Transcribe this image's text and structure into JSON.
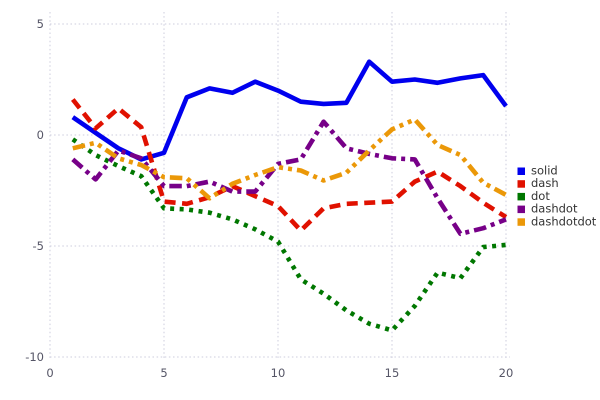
{
  "chart_data": {
    "type": "line",
    "title": "",
    "xlabel": "",
    "ylabel": "",
    "x": [
      1,
      2,
      3,
      4,
      5,
      6,
      7,
      8,
      9,
      10,
      11,
      12,
      13,
      14,
      15,
      16,
      17,
      18,
      19,
      20
    ],
    "series": [
      {
        "name": "solid",
        "style": "solid",
        "color": "#0000EE",
        "values": [
          0.8,
          0.1,
          -0.6,
          -1.1,
          -0.8,
          1.7,
          2.1,
          1.9,
          2.4,
          2.0,
          1.5,
          1.4,
          1.45,
          3.3,
          2.4,
          2.5,
          2.35,
          2.55,
          2.7,
          1.3
        ]
      },
      {
        "name": "dash",
        "style": "dash",
        "color": "#E01100",
        "values": [
          1.6,
          0.3,
          1.2,
          0.35,
          -3.0,
          -3.1,
          -2.8,
          -2.3,
          -2.75,
          -3.2,
          -4.3,
          -3.3,
          -3.1,
          -3.05,
          -3.0,
          -2.1,
          -1.65,
          -2.3,
          -3.05,
          -3.7
        ]
      },
      {
        "name": "dot",
        "style": "dot",
        "color": "#007700",
        "values": [
          -0.2,
          -0.9,
          -1.4,
          -1.85,
          -3.3,
          -3.35,
          -3.5,
          -3.8,
          -4.25,
          -4.8,
          -6.5,
          -7.15,
          -7.9,
          -8.5,
          -8.8,
          -7.7,
          -6.2,
          -6.45,
          -5.05,
          -4.95
        ]
      },
      {
        "name": "dashdot",
        "style": "dashdot",
        "color": "#770088",
        "values": [
          -1.1,
          -2.0,
          -0.7,
          -1.05,
          -2.3,
          -2.3,
          -2.1,
          -2.55,
          -2.55,
          -1.3,
          -1.1,
          0.6,
          -0.6,
          -0.85,
          -1.05,
          -1.1,
          -2.85,
          -4.45,
          -4.2,
          -3.8
        ]
      },
      {
        "name": "dashdotdot",
        "style": "dashdotdot",
        "color": "#EB9808",
        "values": [
          -0.6,
          -0.35,
          -1.05,
          -1.35,
          -1.9,
          -1.95,
          -2.85,
          -2.2,
          -1.8,
          -1.45,
          -1.6,
          -2.05,
          -1.7,
          -0.7,
          0.25,
          0.7,
          -0.45,
          -0.9,
          -2.15,
          -2.7
        ]
      }
    ],
    "xlim": [
      0,
      20
    ],
    "ylim": [
      -10,
      5
    ],
    "xticks": [
      0,
      5,
      10,
      15,
      20
    ],
    "yticks": [
      5,
      0,
      -5,
      -10
    ],
    "grid": true,
    "legend_position": "right"
  },
  "axes": {
    "x_tick_labels": [
      "0",
      "5",
      "10",
      "15",
      "20"
    ],
    "y_tick_labels": [
      "5",
      "0",
      "-5",
      "-10"
    ]
  },
  "legend": {
    "entries": [
      {
        "label": "solid",
        "color": "#0000EE"
      },
      {
        "label": "dash",
        "color": "#E01100"
      },
      {
        "label": "dot",
        "color": "#007700"
      },
      {
        "label": "dashdot",
        "color": "#770088"
      },
      {
        "label": "dashdotdot",
        "color": "#EB9808"
      }
    ]
  },
  "colors": {
    "background": "#FFFFFF",
    "grid": "#CCCCDD",
    "tick_label": "#555566",
    "legend_text": "#333333"
  }
}
